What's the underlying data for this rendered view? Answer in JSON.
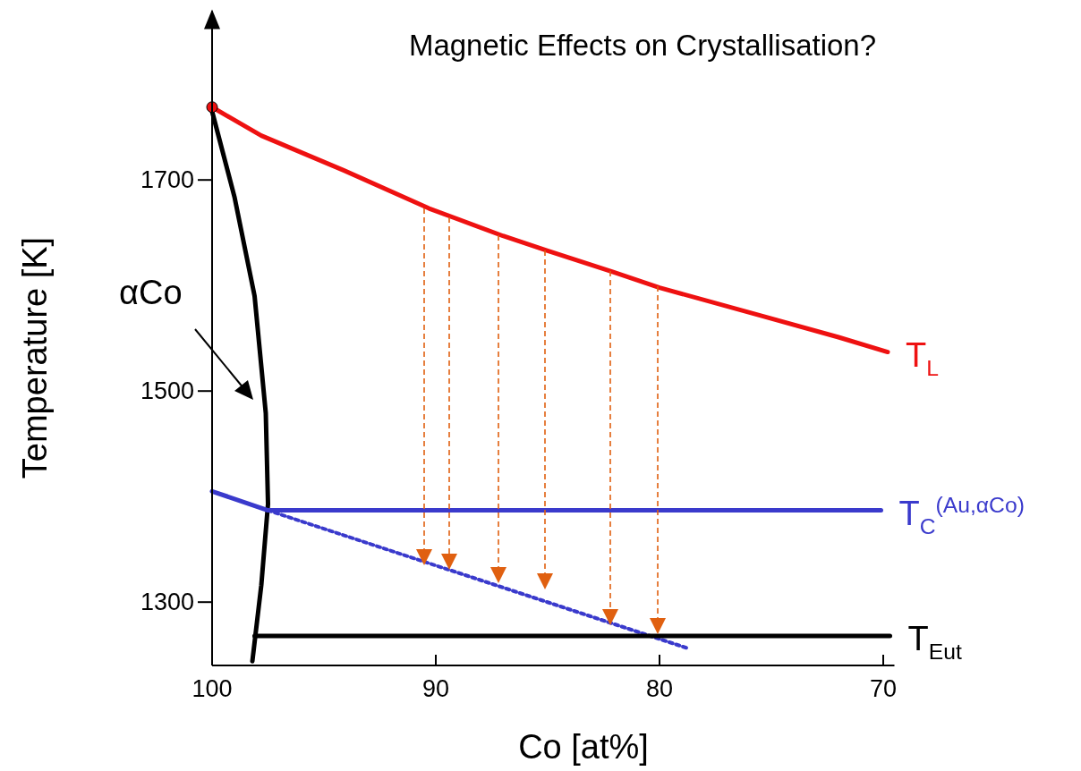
{
  "chart_data": {
    "type": "line",
    "title": "Magnetic Effects on Crystallisation?",
    "xlabel": "Co  [at%]",
    "ylabel": "Temperature [K]",
    "xlim": [
      100,
      69.5
    ],
    "ylim": [
      1240,
      1860
    ],
    "xticks": [
      100,
      90,
      80,
      70
    ],
    "yticks": [
      1300,
      1500,
      1700
    ],
    "grid": false,
    "legend": "right",
    "annotations": [
      "αCo"
    ],
    "series": [
      {
        "name": "T$_{L}$",
        "color": "#ee1111",
        "x": [
          100,
          97.8,
          94.1,
          90.3,
          87.0,
          85.0,
          82.1,
          80.0,
          75.4,
          72.0,
          69.8
        ],
        "values": [
          1769,
          1742,
          1709,
          1673,
          1647,
          1633,
          1613,
          1598,
          1571,
          1551,
          1537
        ]
      },
      {
        "color": "#000000",
        "x": [
          100,
          99.0,
          98.1,
          97.6,
          97.5,
          97.8,
          98.2
        ],
        "values": [
          1765,
          1684,
          1590,
          1479,
          1393,
          1316,
          1244
        ]
      },
      {
        "name": "T$_{C}$$^{(Au,αCo)}$",
        "color": "#3a3acc",
        "x": [
          100,
          97.5,
          70.1
        ],
        "values": [
          1405,
          1387,
          1387
        ]
      },
      {
        "color": "#3a3acc",
        "line_style": "dotted",
        "x": [
          97.5,
          78.7
        ],
        "values": [
          1387,
          1256
        ]
      },
      {
        "name": "T$_{Eut}$",
        "color": "#000000",
        "x": [
          98.1,
          69.7
        ],
        "values": [
          1268,
          1268
        ]
      },
      {
        "type": "scatter",
        "color": "#ee1111",
        "marker": "circle",
        "x": [
          100
        ],
        "values": [
          1769
        ]
      }
    ]
  }
}
